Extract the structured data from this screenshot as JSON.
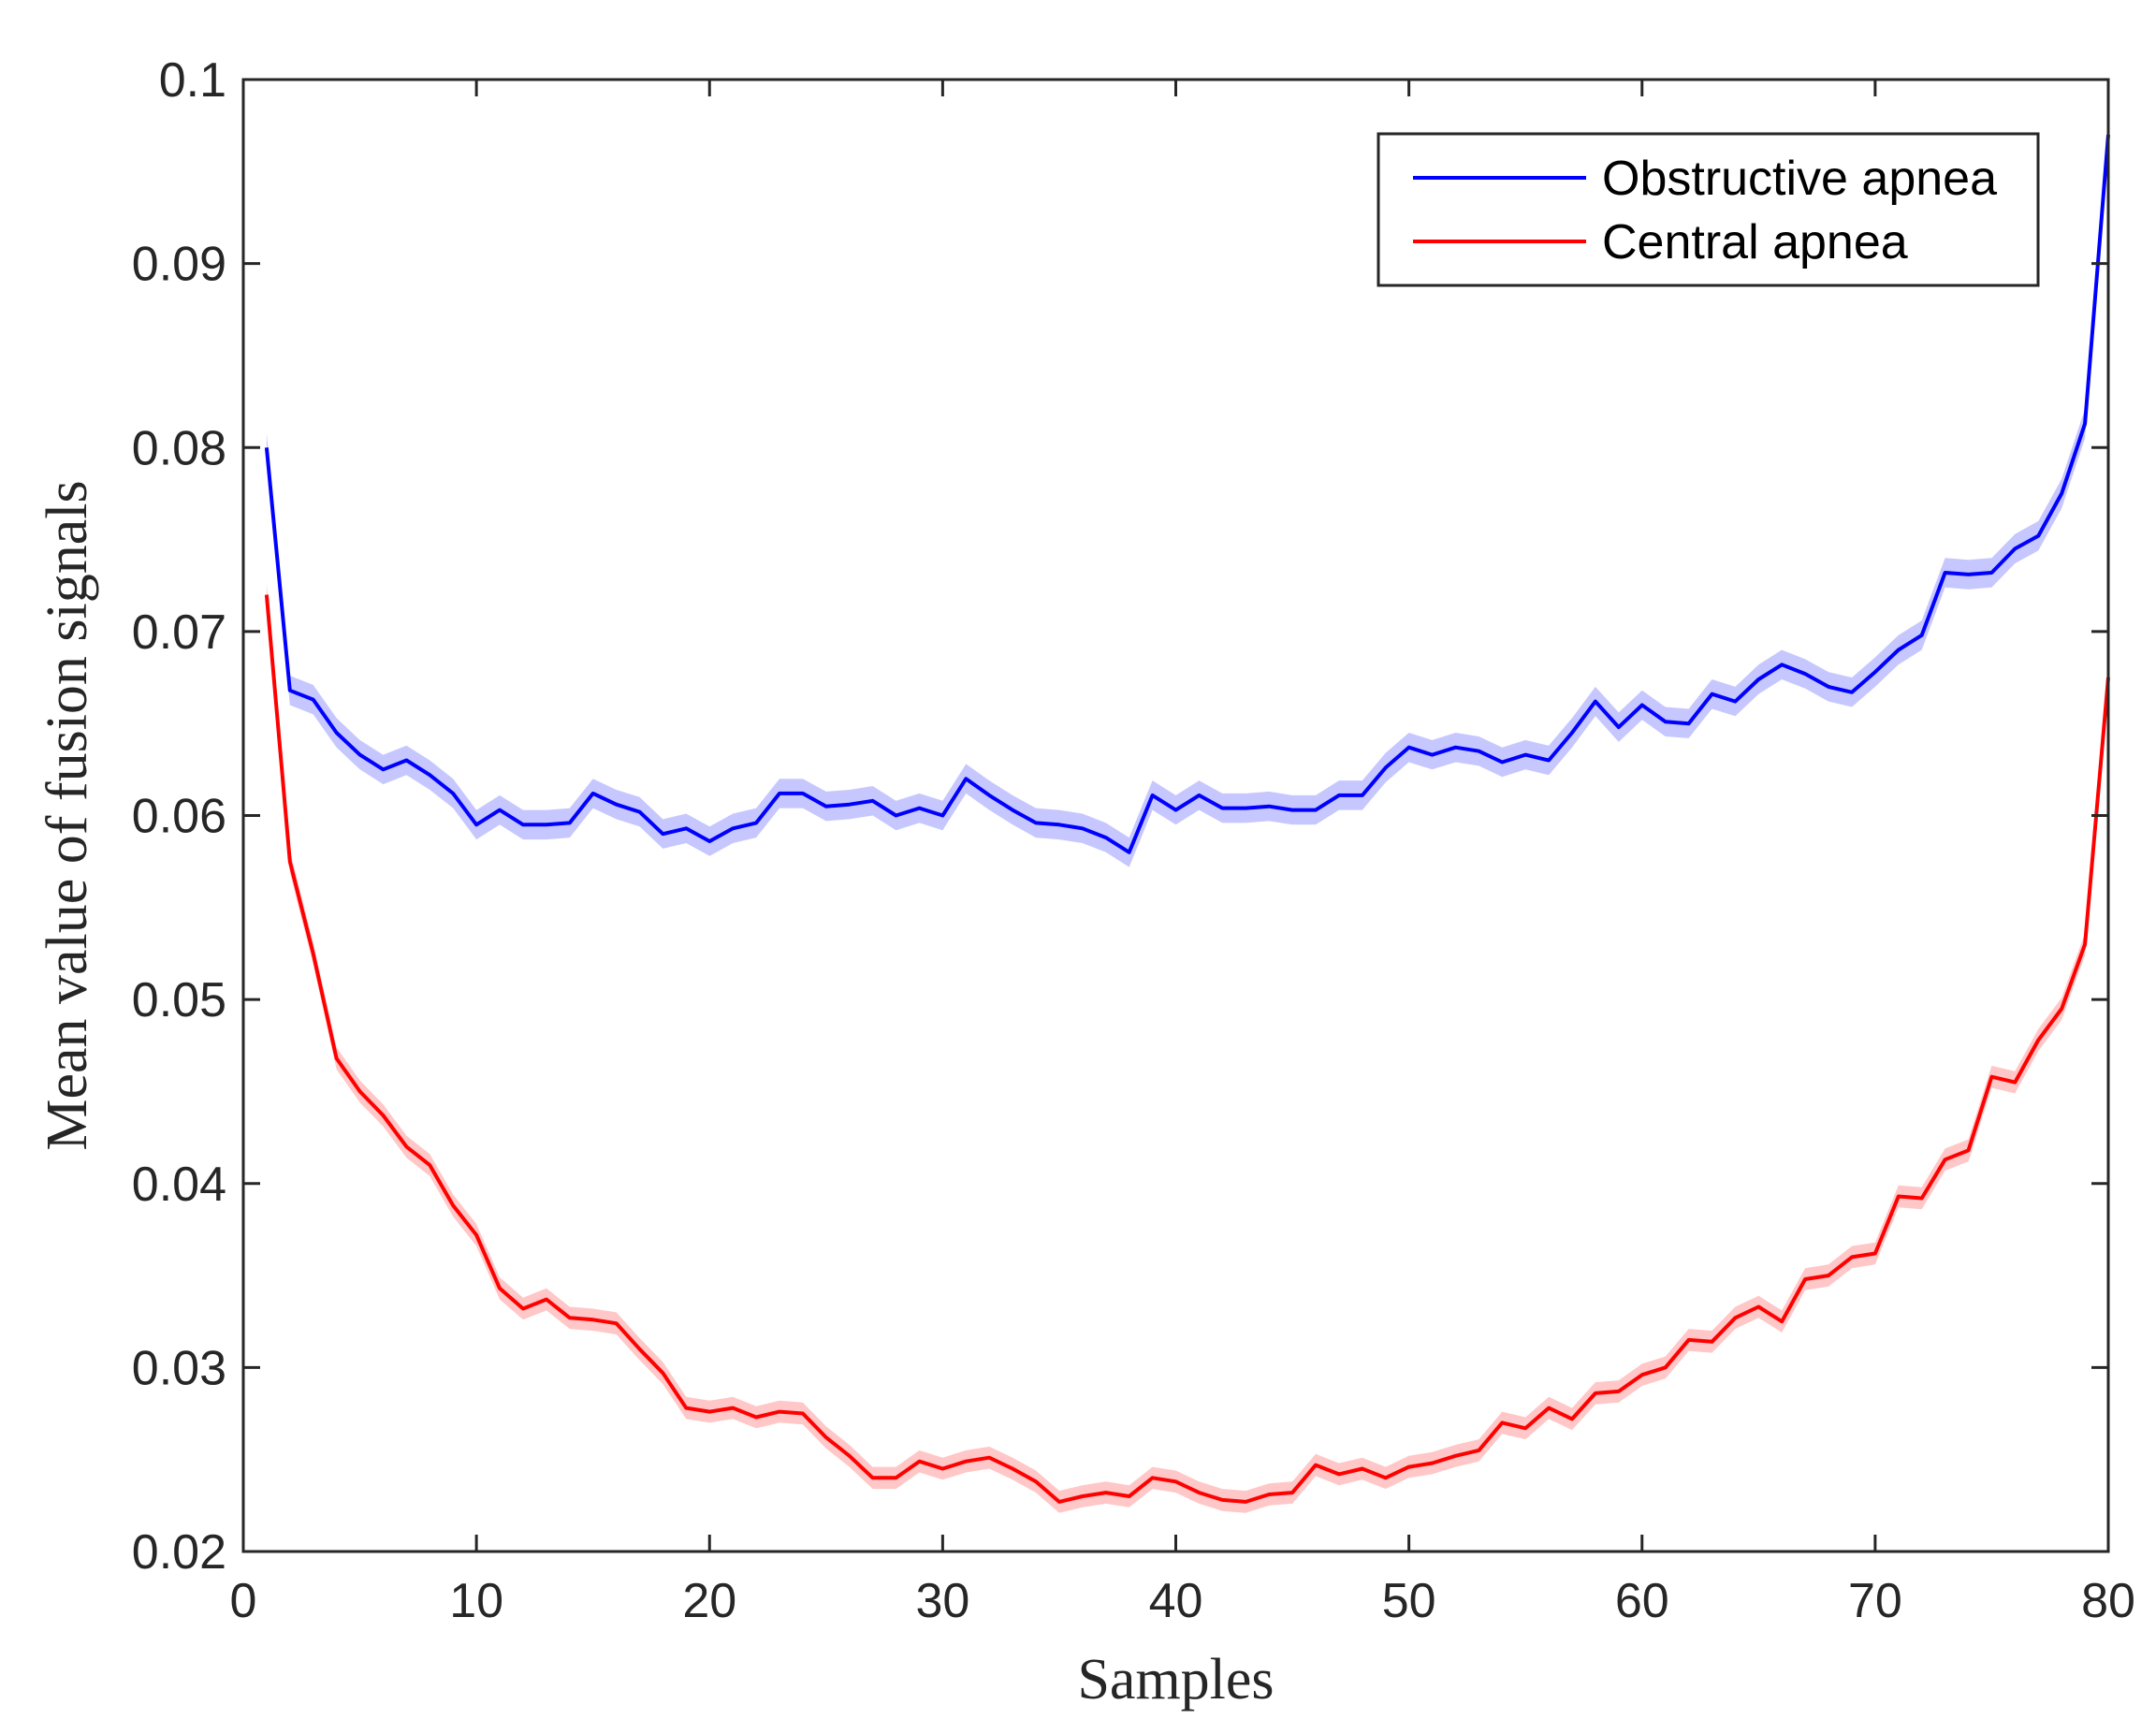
{
  "chart_data": {
    "type": "line",
    "title": "",
    "xlabel": "Samples",
    "ylabel": "Mean value of fusion signals",
    "xlim": [
      0,
      80
    ],
    "ylim": [
      0.02,
      0.1
    ],
    "xticks": [
      "0",
      "10",
      "20",
      "30",
      "40",
      "50",
      "60",
      "70",
      "80"
    ],
    "yticks": [
      "0.02",
      "0.03",
      "0.04",
      "0.05",
      "0.06",
      "0.07",
      "0.08",
      "0.09",
      "0.1"
    ],
    "grid": false,
    "legend_position": "top-right",
    "x": [
      1,
      2,
      3,
      4,
      5,
      6,
      7,
      8,
      9,
      10,
      11,
      12,
      13,
      14,
      15,
      16,
      17,
      18,
      19,
      20,
      21,
      22,
      23,
      24,
      25,
      26,
      27,
      28,
      29,
      30,
      31,
      32,
      33,
      34,
      35,
      36,
      37,
      38,
      39,
      40,
      41,
      42,
      43,
      44,
      45,
      46,
      47,
      48,
      49,
      50,
      51,
      52,
      53,
      54,
      55,
      56,
      57,
      58,
      59,
      60,
      61,
      62,
      63,
      64,
      65,
      66,
      67,
      68,
      69,
      70,
      71,
      72,
      73,
      74,
      75,
      76,
      77,
      78,
      79,
      80
    ],
    "series": [
      {
        "name": "Obstructive apnea",
        "color": "#0000ff",
        "band_color": "#9999ff",
        "band_halfwidth": 0.0008,
        "values": [
          0.08,
          0.0668,
          0.0663,
          0.0645,
          0.0633,
          0.0625,
          0.063,
          0.0622,
          0.0612,
          0.0595,
          0.0603,
          0.0595,
          0.0595,
          0.0596,
          0.0612,
          0.0606,
          0.0602,
          0.059,
          0.0593,
          0.0586,
          0.0593,
          0.0596,
          0.0612,
          0.0612,
          0.0605,
          0.0606,
          0.0608,
          0.06,
          0.0604,
          0.06,
          0.062,
          0.0611,
          0.0603,
          0.0596,
          0.0595,
          0.0593,
          0.0588,
          0.058,
          0.0611,
          0.0603,
          0.0611,
          0.0604,
          0.0604,
          0.0605,
          0.0603,
          0.0603,
          0.0611,
          0.0611,
          0.0626,
          0.0637,
          0.0633,
          0.0637,
          0.0635,
          0.0629,
          0.0633,
          0.063,
          0.0645,
          0.0662,
          0.0648,
          0.066,
          0.0651,
          0.065,
          0.0666,
          0.0662,
          0.0674,
          0.0682,
          0.0677,
          0.067,
          0.0667,
          0.0678,
          0.069,
          0.0698,
          0.0732,
          0.0731,
          0.0732,
          0.0745,
          0.0752,
          0.0775,
          0.0813,
          0.097
        ]
      },
      {
        "name": "Central apnea",
        "color": "#ff0000",
        "band_color": "#ff9999",
        "band_halfwidth": 0.0006,
        "values": [
          0.072,
          0.0575,
          0.0525,
          0.0468,
          0.045,
          0.0437,
          0.042,
          0.041,
          0.0388,
          0.0372,
          0.0343,
          0.0332,
          0.0337,
          0.0327,
          0.0326,
          0.0324,
          0.031,
          0.0297,
          0.0278,
          0.0276,
          0.0278,
          0.0273,
          0.0276,
          0.0275,
          0.0262,
          0.0252,
          0.024,
          0.024,
          0.0249,
          0.0245,
          0.0249,
          0.0251,
          0.0245,
          0.0238,
          0.0227,
          0.023,
          0.0232,
          0.023,
          0.024,
          0.0238,
          0.0232,
          0.0228,
          0.0227,
          0.0231,
          0.0232,
          0.0247,
          0.0242,
          0.0245,
          0.024,
          0.0246,
          0.0248,
          0.0252,
          0.0255,
          0.027,
          0.0267,
          0.0278,
          0.0272,
          0.0286,
          0.0287,
          0.0296,
          0.03,
          0.0315,
          0.0314,
          0.0327,
          0.0333,
          0.0325,
          0.0348,
          0.035,
          0.036,
          0.0362,
          0.0393,
          0.0392,
          0.0413,
          0.0418,
          0.0458,
          0.0455,
          0.0478,
          0.0495,
          0.053,
          0.0675
        ]
      }
    ]
  }
}
